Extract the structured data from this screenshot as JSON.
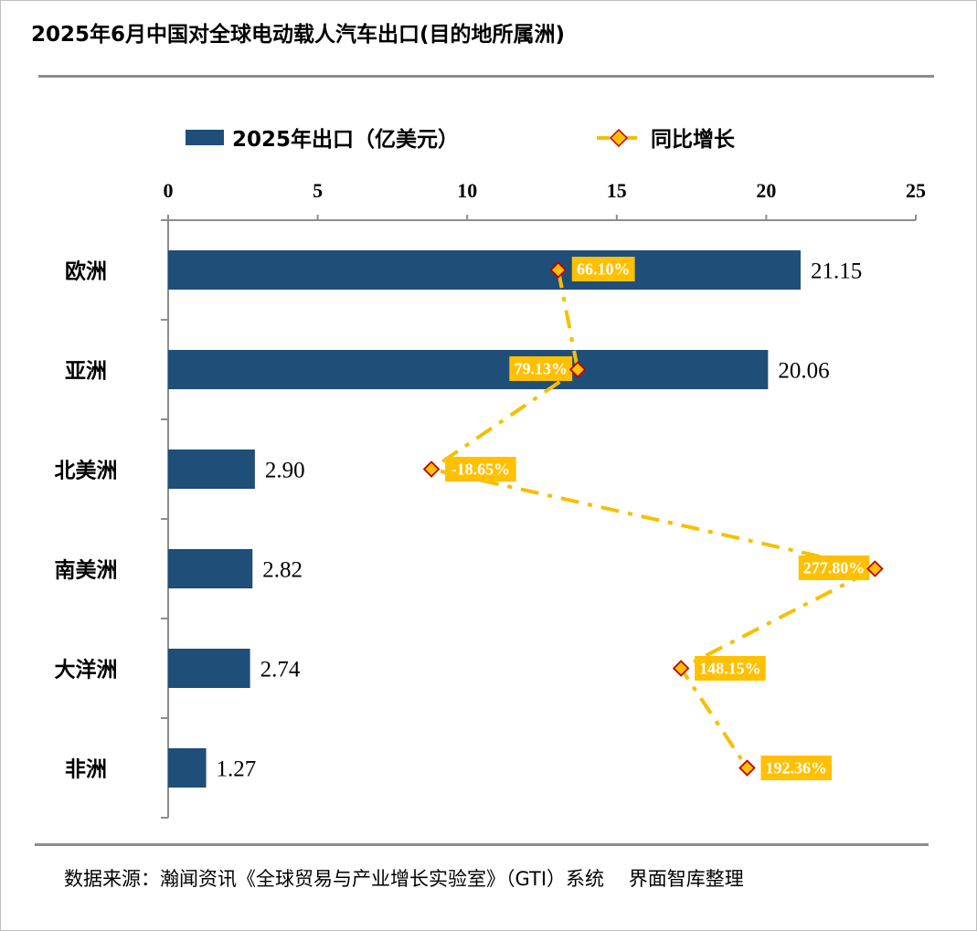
{
  "title": "2025年6月中国对全球电动载人汽车出口(目的地所属洲)",
  "source": "数据来源：瀚闻资讯《全球贸易与产业增长实验室》（GTI）系统    界面智库整理",
  "colors": {
    "bar": "#1f4e79",
    "line": "#f5c000",
    "marker_fill": "#ffc000",
    "marker_edge": "#c00000",
    "label_bg": "#ffc000"
  },
  "chart_data": {
    "type": "bar",
    "orientation": "horizontal",
    "categories": [
      "欧洲",
      "亚洲",
      "北美洲",
      "南美洲",
      "大洋洲",
      "非洲"
    ],
    "series": [
      {
        "name": "2025年出口（亿美元）",
        "type": "bar",
        "values": [
          21.15,
          20.06,
          2.9,
          2.82,
          2.74,
          1.27
        ],
        "value_labels": [
          "21.15",
          "20.06",
          "2.90",
          "2.82",
          "2.74",
          "1.27"
        ]
      },
      {
        "name": "同比增长",
        "type": "line",
        "values": [
          66.1,
          79.13,
          -18.65,
          277.8,
          148.15,
          192.36
        ],
        "value_labels": [
          "66.10%",
          "79.13%",
          "-18.65%",
          "277.80%",
          "148.15%",
          "192.36%"
        ]
      }
    ],
    "x_axis": {
      "min": 0,
      "max": 25,
      "ticks": [
        "0",
        "5",
        "10",
        "15",
        "20",
        "25"
      ],
      "position": "top"
    },
    "legend": "top",
    "grid": false
  }
}
